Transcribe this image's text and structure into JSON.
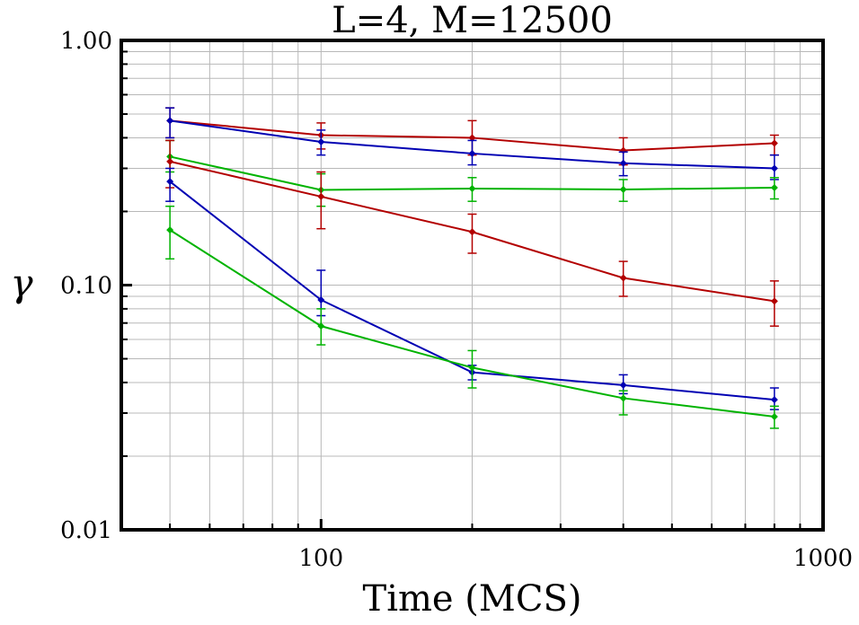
{
  "chart_data": {
    "type": "line",
    "title": "L=4, M=12500",
    "xlabel": "Time (MCS)",
    "ylabel": "γ",
    "xscale": "log",
    "yscale": "log",
    "xlim": [
      40,
      1000
    ],
    "ylim": [
      0.01,
      1.0
    ],
    "grid": true,
    "x_tick_labels": [
      {
        "value": 100,
        "label": "100"
      },
      {
        "value": 1000,
        "label": "1000"
      }
    ],
    "y_tick_labels": [
      {
        "value": 0.01,
        "label": "0.01"
      },
      {
        "value": 0.1,
        "label": "0.10"
      },
      {
        "value": 1.0,
        "label": "1.00"
      }
    ],
    "x": [
      50,
      100,
      200,
      400,
      800
    ],
    "series": [
      {
        "color": "#b30000",
        "values": [
          0.47,
          0.41,
          0.4,
          0.355,
          0.38
        ],
        "err_low": [
          0.4,
          0.36,
          0.34,
          0.31,
          0.34
        ],
        "err_high": [
          0.53,
          0.46,
          0.47,
          0.4,
          0.41
        ]
      },
      {
        "color": "#0000b3",
        "values": [
          0.47,
          0.385,
          0.345,
          0.315,
          0.3
        ],
        "err_low": [
          0.4,
          0.34,
          0.31,
          0.28,
          0.27
        ],
        "err_high": [
          0.53,
          0.43,
          0.39,
          0.35,
          0.34
        ]
      },
      {
        "color": "#00b300",
        "values": [
          0.335,
          0.245,
          0.248,
          0.246,
          0.25
        ],
        "err_low": [
          0.29,
          0.21,
          0.22,
          0.22,
          0.225
        ],
        "err_high": [
          0.39,
          0.285,
          0.275,
          0.27,
          0.275
        ]
      },
      {
        "color": "#b30000",
        "values": [
          0.32,
          0.23,
          0.165,
          0.107,
          0.086
        ],
        "err_low": [
          0.25,
          0.17,
          0.135,
          0.09,
          0.068
        ],
        "err_high": [
          0.39,
          0.29,
          0.195,
          0.125,
          0.104
        ]
      },
      {
        "color": "#0000b3",
        "values": [
          0.265,
          0.087,
          0.044,
          0.039,
          0.034
        ],
        "err_low": [
          0.22,
          0.075,
          0.041,
          0.036,
          0.031
        ],
        "err_high": [
          0.3,
          0.115,
          0.047,
          0.043,
          0.038
        ]
      },
      {
        "color": "#00b300",
        "values": [
          0.168,
          0.068,
          0.046,
          0.0345,
          0.029
        ],
        "err_low": [
          0.128,
          0.057,
          0.038,
          0.0295,
          0.026
        ],
        "err_high": [
          0.21,
          0.08,
          0.054,
          0.037,
          0.032
        ]
      }
    ]
  }
}
